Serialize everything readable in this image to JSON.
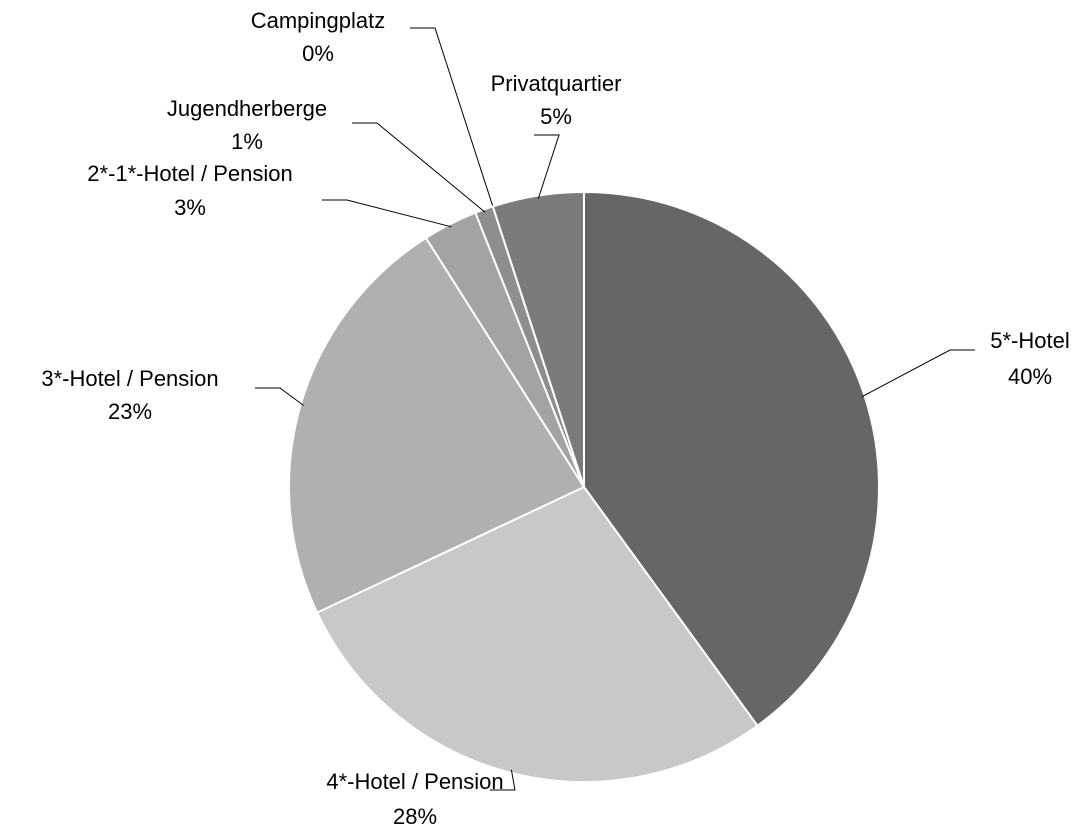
{
  "chart_data": {
    "type": "pie",
    "categories": [
      "5*-Hotel",
      "4*-Hotel / Pension",
      "3*-Hotel / Pension",
      "2*-1*-Hotel / Pension",
      "Jugendherberge",
      "Campingplatz",
      "Privatquartier"
    ],
    "values": [
      40,
      28,
      23,
      3,
      1,
      0,
      5
    ],
    "value_labels": [
      "40%",
      "28%",
      "23%",
      "3%",
      "1%",
      "0%",
      "5%"
    ],
    "colors": [
      "#666666",
      "#c8c8c8",
      "#b0b0b0",
      "#a3a3a3",
      "#8e8e8e",
      "#999999",
      "#7b7b7b"
    ]
  }
}
